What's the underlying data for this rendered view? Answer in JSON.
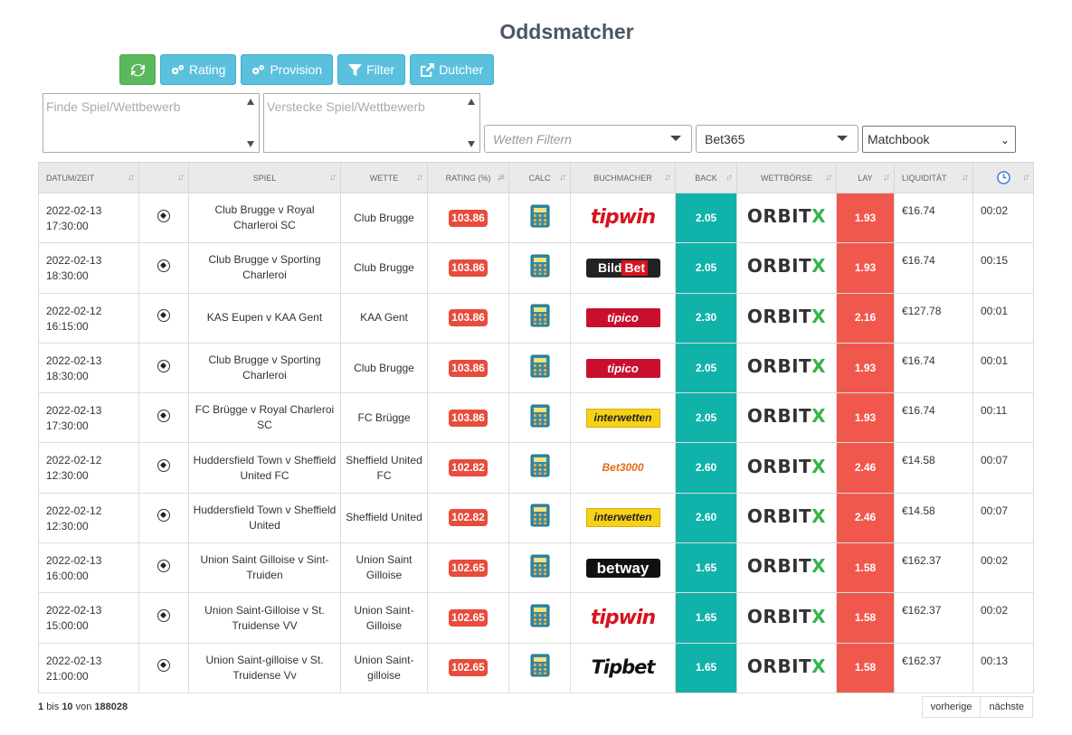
{
  "page": {
    "title": "Oddsmatcher"
  },
  "toolbar": {
    "refresh_icon": "refresh-icon",
    "rating_label": "Rating",
    "provision_label": "Provision",
    "filter_label": "Filter",
    "dutcher_label": "Dutcher"
  },
  "filters": {
    "find_placeholder": "Finde Spiel/Wettbewerb",
    "hide_placeholder": "Verstecke Spiel/Wettbewerb",
    "bets_placeholder": "Wetten Filtern",
    "bookmaker_selected": "Bet365",
    "exchange_selected": "Matchbook"
  },
  "table": {
    "headers": [
      "Datum/Zeit",
      "",
      "Spiel",
      "Wette",
      "Rating (%)",
      "Calc",
      "Buchmacher",
      "Back",
      "Wettbörse",
      "Lay",
      "Liquidität",
      ""
    ],
    "rows": [
      {
        "date": "2022-02-13",
        "time": "17:30:00",
        "game": "Club Brugge v Royal Charleroi SC",
        "bet": "Club Brugge",
        "rating": "103.86",
        "bookmaker": "tipwin",
        "back": "2.05",
        "exchange": "ORBITX",
        "lay": "1.93",
        "liquidity": "€16.74",
        "age": "00:02"
      },
      {
        "date": "2022-02-13",
        "time": "18:30:00",
        "game": "Club Brugge v Sporting Charleroi",
        "bet": "Club Brugge",
        "rating": "103.86",
        "bookmaker": "BildBet",
        "back": "2.05",
        "exchange": "ORBITX",
        "lay": "1.93",
        "liquidity": "€16.74",
        "age": "00:15"
      },
      {
        "date": "2022-02-12",
        "time": "16:15:00",
        "game": "KAS Eupen v KAA Gent",
        "bet": "KAA Gent",
        "rating": "103.86",
        "bookmaker": "tipico",
        "back": "2.30",
        "exchange": "ORBITX",
        "lay": "2.16",
        "liquidity": "€127.78",
        "age": "00:01"
      },
      {
        "date": "2022-02-13",
        "time": "18:30:00",
        "game": "Club Brugge v Sporting Charleroi",
        "bet": "Club Brugge",
        "rating": "103.86",
        "bookmaker": "tipico",
        "back": "2.05",
        "exchange": "ORBITX",
        "lay": "1.93",
        "liquidity": "€16.74",
        "age": "00:01"
      },
      {
        "date": "2022-02-13",
        "time": "17:30:00",
        "game": "FC Brügge v Royal Charleroi SC",
        "bet": "FC Brügge",
        "rating": "103.86",
        "bookmaker": "interwetten",
        "back": "2.05",
        "exchange": "ORBITX",
        "lay": "1.93",
        "liquidity": "€16.74",
        "age": "00:11"
      },
      {
        "date": "2022-02-12",
        "time": "12:30:00",
        "game": "Huddersfield Town v Sheffield United FC",
        "bet": "Sheffield United FC",
        "rating": "102.82",
        "bookmaker": "Bet3000",
        "back": "2.60",
        "exchange": "ORBITX",
        "lay": "2.46",
        "liquidity": "€14.58",
        "age": "00:07"
      },
      {
        "date": "2022-02-12",
        "time": "12:30:00",
        "game": "Huddersfield Town v Sheffield United",
        "bet": "Sheffield United",
        "rating": "102.82",
        "bookmaker": "interwetten",
        "back": "2.60",
        "exchange": "ORBITX",
        "lay": "2.46",
        "liquidity": "€14.58",
        "age": "00:07"
      },
      {
        "date": "2022-02-13",
        "time": "16:00:00",
        "game": "Union Saint Gilloise v Sint-Truiden",
        "bet": "Union Saint Gilloise",
        "rating": "102.65",
        "bookmaker": "betway",
        "back": "1.65",
        "exchange": "ORBITX",
        "lay": "1.58",
        "liquidity": "€162.37",
        "age": "00:02"
      },
      {
        "date": "2022-02-13",
        "time": "15:00:00",
        "game": "Union Saint-Gilloise v St. Truidense VV",
        "bet": "Union Saint-Gilloise",
        "rating": "102.65",
        "bookmaker": "tipwin",
        "back": "1.65",
        "exchange": "ORBITX",
        "lay": "1.58",
        "liquidity": "€162.37",
        "age": "00:02"
      },
      {
        "date": "2022-02-13",
        "time": "21:00:00",
        "game": "Union Saint-gilloise v St. Truidense Vv",
        "bet": "Union Saint-gilloise",
        "rating": "102.65",
        "bookmaker": "Tipbet",
        "back": "1.65",
        "exchange": "ORBITX",
        "lay": "1.58",
        "liquidity": "€162.37",
        "age": "00:13"
      }
    ]
  },
  "footer": {
    "from": "1",
    "from_to": "bis",
    "to": "10",
    "of": "von",
    "total": "188028",
    "prev_label": "vorherige",
    "next_label": "nächste"
  },
  "colors": {
    "back": "#11b2aa",
    "lay": "#f0584d",
    "rating": "#e74c3c",
    "toolbar": "#5bc0de",
    "refresh": "#5cb85c"
  }
}
